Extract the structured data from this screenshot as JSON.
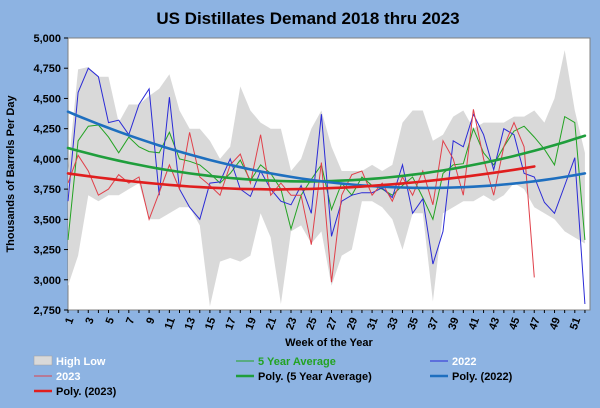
{
  "chart_data": {
    "type": "line",
    "title": "US Distillates Demand 2018 thru 2023",
    "xlabel": "Week of the Year",
    "ylabel": "Thousands of Barrels Per Day",
    "ylim": [
      2750,
      5000
    ],
    "yticks": [
      "2,750",
      "3,000",
      "3,250",
      "3,500",
      "3,750",
      "4,000",
      "4,250",
      "4,500",
      "4,750",
      "5,000"
    ],
    "xlim": [
      1,
      52
    ],
    "xticks": [
      "1",
      "3",
      "5",
      "7",
      "9",
      "11",
      "13",
      "15",
      "17",
      "19",
      "21",
      "23",
      "25",
      "27",
      "29",
      "31",
      "33",
      "35",
      "37",
      "39",
      "41",
      "43",
      "45",
      "47",
      "49",
      "51"
    ],
    "x": [
      1,
      2,
      3,
      4,
      5,
      6,
      7,
      8,
      9,
      10,
      11,
      12,
      13,
      14,
      15,
      16,
      17,
      18,
      19,
      20,
      21,
      22,
      23,
      24,
      25,
      26,
      27,
      28,
      29,
      30,
      31,
      32,
      33,
      34,
      35,
      36,
      37,
      38,
      39,
      40,
      41,
      42,
      43,
      44,
      45,
      46,
      47,
      48,
      49,
      50,
      51,
      52
    ],
    "band": {
      "name": "High Low",
      "color": "#d9d9d9",
      "high": [
        3900,
        4740,
        4760,
        4680,
        4680,
        4300,
        4450,
        4450,
        4520,
        4580,
        4700,
        4400,
        4250,
        4250,
        4150,
        4000,
        4100,
        4600,
        4400,
        4300,
        4250,
        4250,
        3900,
        4000,
        4250,
        4400,
        4100,
        3900,
        3900,
        3900,
        3950,
        3900,
        3950,
        4300,
        4400,
        4400,
        4150,
        4200,
        4350,
        4400,
        4250,
        4300,
        4300,
        4300,
        4350,
        4350,
        4400,
        4300,
        4500,
        4900,
        4400,
        4050
      ],
      "low": [
        2950,
        3200,
        3700,
        3650,
        3700,
        3700,
        3750,
        3800,
        3500,
        3500,
        3550,
        3600,
        3600,
        3450,
        2780,
        3150,
        3180,
        3150,
        3200,
        3550,
        3350,
        2800,
        3400,
        3450,
        3300,
        3400,
        2950,
        3200,
        3250,
        3650,
        3650,
        3600,
        3500,
        3250,
        3550,
        3550,
        2820,
        3550,
        3600,
        3650,
        3650,
        3700,
        3650,
        3700,
        3800,
        3750,
        3600,
        3550,
        3500,
        3400,
        3350,
        3300
      ]
    },
    "series": [
      {
        "name": "5 Year Average",
        "color": "#23a323",
        "values": [
          3330,
          4150,
          4270,
          4280,
          4180,
          4050,
          4180,
          4100,
          4060,
          4050,
          4220,
          4000,
          3980,
          3950,
          3880,
          3800,
          3880,
          3990,
          3820,
          3950,
          3880,
          3750,
          3420,
          3700,
          3830,
          3950,
          3580,
          3800,
          3700,
          3850,
          3780,
          3750,
          3700,
          3780,
          3850,
          3680,
          3500,
          3880,
          3950,
          3960,
          4250,
          4050,
          3950,
          4100,
          4230,
          4270,
          4180,
          4080,
          3950,
          4350,
          4300,
          3330
        ]
      },
      {
        "name": "2022",
        "color": "#2b2bd6",
        "values": [
          3650,
          4550,
          4750,
          4680,
          4300,
          4320,
          4200,
          4450,
          4580,
          3700,
          4510,
          3750,
          3600,
          3500,
          3800,
          3810,
          4000,
          3750,
          3690,
          3900,
          3750,
          3650,
          3620,
          3780,
          3550,
          4370,
          3360,
          3650,
          3700,
          3720,
          3720,
          3760,
          3680,
          3950,
          3550,
          3670,
          3130,
          3400,
          4150,
          4100,
          4370,
          4200,
          3910,
          4250,
          4200,
          3880,
          3850,
          3640,
          3550,
          3780,
          4010,
          2800
        ]
      },
      {
        "name": "2023",
        "color": "#e0404a",
        "values": [
          3800,
          4030,
          3900,
          3700,
          3750,
          3870,
          3800,
          3850,
          3500,
          3720,
          3950,
          3750,
          4220,
          3850,
          3780,
          3700,
          3950,
          4040,
          3800,
          4200,
          3700,
          3800,
          3700,
          3700,
          3290,
          3970,
          2980,
          3700,
          3870,
          3900,
          3700,
          3800,
          3650,
          3850,
          3700,
          3900,
          3620,
          4150,
          4000,
          3700,
          4410,
          4000,
          3700,
          4100,
          4300,
          4100,
          3020,
          null,
          null,
          null,
          null,
          null
        ]
      }
    ],
    "trends": [
      {
        "name": "Poly. (5 Year Average)",
        "color": "#1f9e3c",
        "values": [
          4090,
          4067,
          4045,
          4024,
          4004,
          3985,
          3967,
          3950,
          3934,
          3919,
          3905,
          3892,
          3880,
          3869,
          3859,
          3850,
          3842,
          3835,
          3829,
          3824,
          3820,
          3817,
          3815,
          3814,
          3814,
          3815,
          3817,
          3820,
          3824,
          3829,
          3835,
          3842,
          3850,
          3859,
          3869,
          3880,
          3892,
          3905,
          3919,
          3934,
          3950,
          3967,
          3985,
          4004,
          4024,
          4045,
          4067,
          4090,
          4114,
          4139,
          4165,
          4192
        ]
      },
      {
        "name": "Poly. (2022)",
        "color": "#1e6fbf",
        "values": [
          4390,
          4355,
          4321,
          4288,
          4256,
          4225,
          4195,
          4166,
          4138,
          4111,
          4085,
          4060,
          4036,
          4013,
          3991,
          3970,
          3950,
          3931,
          3913,
          3896,
          3880,
          3865,
          3851,
          3838,
          3826,
          3815,
          3805,
          3796,
          3788,
          3781,
          3775,
          3770,
          3766,
          3763,
          3761,
          3760,
          3760,
          3761,
          3763,
          3766,
          3770,
          3775,
          3781,
          3788,
          3796,
          3805,
          3815,
          3826,
          3838,
          3851,
          3865,
          3880
        ]
      },
      {
        "name": "Poly. (2023)",
        "color": "#e01e1e",
        "values": [
          3880,
          3868,
          3857,
          3846,
          3836,
          3826,
          3817,
          3808,
          3800,
          3792,
          3785,
          3778,
          3772,
          3767,
          3762,
          3758,
          3755,
          3752,
          3750,
          3749,
          3748,
          3748,
          3749,
          3750,
          3752,
          3755,
          3758,
          3762,
          3766,
          3771,
          3777,
          3783,
          3790,
          3797,
          3805,
          3813,
          3822,
          3831,
          3841,
          3851,
          3862,
          3873,
          3885,
          3897,
          3910,
          3923,
          3937,
          null,
          null,
          null,
          null,
          null
        ]
      }
    ],
    "legend": [
      {
        "label": "High Low",
        "kind": "box",
        "color": "#d9d9d9",
        "label_color": "#ffffff"
      },
      {
        "label": "5 Year Average",
        "kind": "line-thin",
        "color": "#23a323",
        "label_color": "#23a323"
      },
      {
        "label": "2022",
        "kind": "line-thin",
        "color": "#2b2bd6",
        "label_color": "#ffffff"
      },
      {
        "label": "2023",
        "kind": "line-thin",
        "color": "#e0404a",
        "label_color": "#ffffff"
      },
      {
        "label": "Poly. (5 Year Average)",
        "kind": "line-thick",
        "color": "#1f9e3c",
        "label_color": "#000000"
      },
      {
        "label": "Poly. (2022)",
        "kind": "line-thick",
        "color": "#1e6fbf",
        "label_color": "#000000"
      },
      {
        "label": "Poly. (2023)",
        "kind": "line-thick",
        "color": "#e01e1e",
        "label_color": "#000000"
      }
    ],
    "grid": false,
    "legend_position": "bottom"
  },
  "colors": {
    "background": "#8db3e2",
    "plot_area": "#ffffff"
  }
}
